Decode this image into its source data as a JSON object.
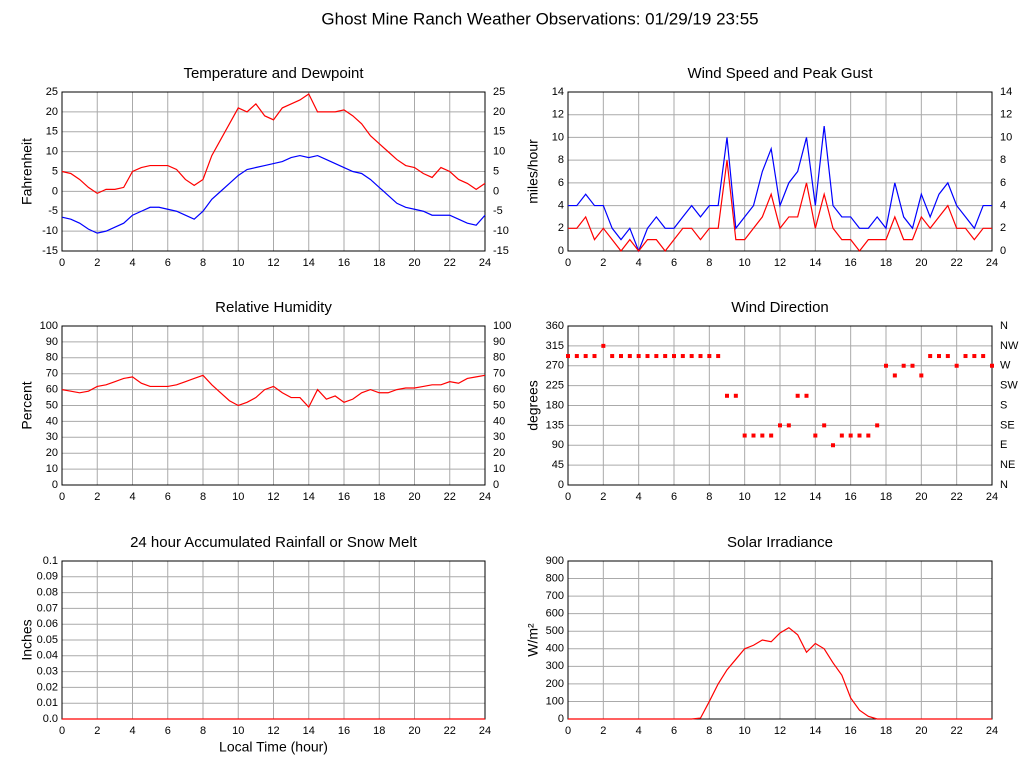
{
  "title": "Ghost Mine Ranch Weather Observations: 01/29/19 23:55",
  "chart_data": [
    {
      "type": "line",
      "title": "Temperature and Dewpoint",
      "ylabel": "Fahrenheit",
      "xlim": [
        0,
        24
      ],
      "xticks": [
        0,
        2,
        4,
        6,
        8,
        10,
        12,
        14,
        16,
        18,
        20,
        22,
        24
      ],
      "ylim": [
        -15,
        25
      ],
      "yticks": [
        -15,
        -10,
        -5,
        0,
        5,
        10,
        15,
        20,
        25
      ],
      "y2lim": [
        -15,
        25
      ],
      "y2ticks": [
        -15,
        -10,
        -5,
        0,
        5,
        10,
        15,
        20,
        25
      ],
      "grid": true,
      "x": [
        0,
        0.5,
        1,
        1.5,
        2,
        2.5,
        3,
        3.5,
        4,
        4.5,
        5,
        5.5,
        6,
        6.5,
        7,
        7.5,
        8,
        8.5,
        9,
        9.5,
        10,
        10.5,
        11,
        11.5,
        12,
        12.5,
        13,
        13.5,
        14,
        14.5,
        15,
        15.5,
        16,
        16.5,
        17,
        17.5,
        18,
        18.5,
        19,
        19.5,
        20,
        20.5,
        21,
        21.5,
        22,
        22.5,
        23,
        23.5,
        24
      ],
      "series": [
        {
          "color": "#ff0000",
          "values": [
            5,
            4.5,
            3,
            1,
            -0.5,
            0.5,
            0.5,
            1,
            5,
            6,
            6.5,
            6.5,
            6.5,
            5.5,
            3,
            1.5,
            3,
            9,
            13,
            17,
            21,
            20,
            22,
            19,
            18,
            21,
            22,
            23,
            24.5,
            20,
            20,
            20,
            20.5,
            19,
            17,
            14,
            12,
            10,
            8,
            6.5,
            6,
            4.5,
            3.5,
            6,
            5,
            3,
            2,
            0.5,
            2
          ]
        },
        {
          "color": "#0000ff",
          "values": [
            -6.5,
            -7,
            -8,
            -9.5,
            -10.5,
            -10,
            -9,
            -8,
            -6,
            -5,
            -4,
            -4,
            -4.5,
            -5,
            -6,
            -7,
            -5,
            -2,
            0,
            2,
            4,
            5.5,
            6,
            6.5,
            7,
            7.5,
            8.5,
            9,
            8.5,
            9,
            8,
            7,
            6,
            5,
            4.5,
            3,
            1,
            -1,
            -3,
            -4,
            -4.5,
            -5,
            -6,
            -6,
            -6,
            -7,
            -8,
            -8.5,
            -6
          ]
        }
      ]
    },
    {
      "type": "line",
      "title": "Wind Speed and Peak Gust",
      "ylabel": "miles/hour",
      "xlim": [
        0,
        24
      ],
      "xticks": [
        0,
        2,
        4,
        6,
        8,
        10,
        12,
        14,
        16,
        18,
        20,
        22,
        24
      ],
      "ylim": [
        0,
        14
      ],
      "yticks": [
        0,
        2,
        4,
        6,
        8,
        10,
        12,
        14
      ],
      "y2lim": [
        0,
        14
      ],
      "y2ticks": [
        0,
        2,
        4,
        6,
        8,
        10,
        12,
        14
      ],
      "grid": true,
      "x": [
        0,
        0.5,
        1,
        1.5,
        2,
        2.5,
        3,
        3.5,
        4,
        4.5,
        5,
        5.5,
        6,
        6.5,
        7,
        7.5,
        8,
        8.5,
        9,
        9.5,
        10,
        10.5,
        11,
        11.5,
        12,
        12.5,
        13,
        13.5,
        14,
        14.5,
        15,
        15.5,
        16,
        16.5,
        17,
        17.5,
        18,
        18.5,
        19,
        19.5,
        20,
        20.5,
        21,
        21.5,
        22,
        22.5,
        23,
        23.5,
        24
      ],
      "series": [
        {
          "color": "#0000ff",
          "values": [
            4,
            4,
            5,
            4,
            4,
            2,
            1,
            2,
            0,
            2,
            3,
            2,
            2,
            3,
            4,
            3,
            4,
            4,
            10,
            2,
            3,
            4,
            7,
            9,
            4,
            6,
            7,
            10,
            4,
            11,
            4,
            3,
            3,
            2,
            2,
            3,
            2,
            6,
            3,
            2,
            5,
            3,
            5,
            6,
            4,
            3,
            2,
            4,
            4
          ]
        },
        {
          "color": "#ff0000",
          "values": [
            2,
            2,
            3,
            1,
            2,
            1,
            0,
            1,
            0,
            1,
            1,
            0,
            1,
            2,
            2,
            1,
            2,
            2,
            8,
            1,
            1,
            2,
            3,
            5,
            2,
            3,
            3,
            6,
            2,
            5,
            2,
            1,
            1,
            0,
            1,
            1,
            1,
            3,
            1,
            1,
            3,
            2,
            3,
            4,
            2,
            2,
            1,
            2,
            2
          ]
        }
      ]
    },
    {
      "type": "line",
      "title": "Relative Humidity",
      "ylabel": "Percent",
      "xlim": [
        0,
        24
      ],
      "xticks": [
        0,
        2,
        4,
        6,
        8,
        10,
        12,
        14,
        16,
        18,
        20,
        22,
        24
      ],
      "ylim": [
        0,
        100
      ],
      "yticks": [
        0,
        10,
        20,
        30,
        40,
        50,
        60,
        70,
        80,
        90,
        100
      ],
      "y2lim": [
        0,
        100
      ],
      "y2ticks": [
        0,
        10,
        20,
        30,
        40,
        50,
        60,
        70,
        80,
        90,
        100
      ],
      "grid": true,
      "x": [
        0,
        0.5,
        1,
        1.5,
        2,
        2.5,
        3,
        3.5,
        4,
        4.5,
        5,
        5.5,
        6,
        6.5,
        7,
        7.5,
        8,
        8.5,
        9,
        9.5,
        10,
        10.5,
        11,
        11.5,
        12,
        12.5,
        13,
        13.5,
        14,
        14.5,
        15,
        15.5,
        16,
        16.5,
        17,
        17.5,
        18,
        18.5,
        19,
        19.5,
        20,
        20.5,
        21,
        21.5,
        22,
        22.5,
        23,
        23.5,
        24
      ],
      "series": [
        {
          "color": "#ff0000",
          "values": [
            60,
            59,
            58,
            59,
            62,
            63,
            65,
            67,
            68,
            64,
            62,
            62,
            62,
            63,
            65,
            67,
            69,
            63,
            58,
            53,
            50,
            52,
            55,
            60,
            62,
            58,
            55,
            55,
            49,
            60,
            54,
            56,
            52,
            54,
            58,
            60,
            58,
            58,
            60,
            61,
            61,
            62,
            63,
            63,
            65,
            64,
            67,
            68,
            69
          ]
        }
      ]
    },
    {
      "type": "scatter",
      "title": "Wind Direction",
      "ylabel": "degrees",
      "xlim": [
        0,
        24
      ],
      "xticks": [
        0,
        2,
        4,
        6,
        8,
        10,
        12,
        14,
        16,
        18,
        20,
        22,
        24
      ],
      "ylim": [
        0,
        360
      ],
      "yticks": [
        0,
        45,
        90,
        135,
        180,
        225,
        270,
        315,
        360
      ],
      "y2lim": [
        0,
        360
      ],
      "y2ticks": [
        {
          "value": 0,
          "label": "N"
        },
        {
          "value": 45,
          "label": "NE"
        },
        {
          "value": 90,
          "label": "E"
        },
        {
          "value": 135,
          "label": "SE"
        },
        {
          "value": 180,
          "label": "S"
        },
        {
          "value": 225,
          "label": "SW"
        },
        {
          "value": 270,
          "label": "W"
        },
        {
          "value": 315,
          "label": "NW"
        },
        {
          "value": 360,
          "label": "N"
        }
      ],
      "grid": true,
      "x": [
        0,
        0.5,
        1,
        1.5,
        2,
        2.5,
        3,
        3.5,
        4,
        4.5,
        5,
        5.5,
        6,
        6.5,
        7,
        7.5,
        8,
        8.5,
        9,
        9.5,
        10,
        10.5,
        11,
        11.5,
        12,
        12.5,
        13,
        13.5,
        14,
        14.5,
        15,
        15.5,
        16,
        16.5,
        17,
        17.5,
        18,
        18.5,
        19,
        19.5,
        20,
        20.5,
        21,
        21.5,
        22,
        22.5,
        23,
        23.5,
        24
      ],
      "series": [
        {
          "color": "#ff0000",
          "values": [
            292,
            292,
            292,
            292,
            315,
            292,
            292,
            292,
            292,
            292,
            292,
            292,
            292,
            292,
            292,
            292,
            292,
            292,
            202,
            202,
            112,
            112,
            112,
            112,
            135,
            135,
            202,
            202,
            112,
            135,
            90,
            112,
            112,
            112,
            112,
            135,
            270,
            248,
            270,
            270,
            248,
            292,
            292,
            292,
            270,
            292,
            292,
            292,
            270
          ]
        }
      ]
    },
    {
      "type": "line",
      "title": "24 hour Accumulated Rainfall or Snow Melt",
      "ylabel": "Inches",
      "xlabel": "Local Time (hour)",
      "xlim": [
        0,
        24
      ],
      "xticks": [
        0,
        2,
        4,
        6,
        8,
        10,
        12,
        14,
        16,
        18,
        20,
        22,
        24
      ],
      "ylim": [
        0,
        0.1
      ],
      "yticks": [
        {
          "value": 0,
          "label": "0.0"
        },
        0.01,
        0.02,
        0.03,
        0.04,
        0.05,
        0.06,
        0.07,
        0.08,
        0.09,
        0.1
      ],
      "grid": true,
      "x": [
        0,
        24
      ],
      "series": [
        {
          "color": "#ff0000",
          "values": [
            0,
            0
          ]
        }
      ]
    },
    {
      "type": "line",
      "title": "Solar Irradiance",
      "ylabel": "W/m²",
      "xlim": [
        0,
        24
      ],
      "xticks": [
        0,
        2,
        4,
        6,
        8,
        10,
        12,
        14,
        16,
        18,
        20,
        22,
        24
      ],
      "ylim": [
        0,
        900
      ],
      "yticks": [
        0,
        100,
        200,
        300,
        400,
        500,
        600,
        700,
        800,
        900
      ],
      "grid": true,
      "x": [
        0,
        0.5,
        1,
        1.5,
        2,
        2.5,
        3,
        3.5,
        4,
        4.5,
        5,
        5.5,
        6,
        6.5,
        7,
        7.5,
        8,
        8.5,
        9,
        9.5,
        10,
        10.5,
        11,
        11.5,
        12,
        12.5,
        13,
        13.5,
        14,
        14.5,
        15,
        15.5,
        16,
        16.5,
        17,
        17.5,
        18,
        18.5,
        19,
        19.5,
        20,
        20.5,
        21,
        21.5,
        22,
        22.5,
        23,
        23.5,
        24
      ],
      "series": [
        {
          "color": "#ff0000",
          "values": [
            0,
            0,
            0,
            0,
            0,
            0,
            0,
            0,
            0,
            0,
            0,
            0,
            0,
            0,
            0,
            5,
            100,
            200,
            280,
            340,
            400,
            420,
            450,
            440,
            490,
            520,
            480,
            380,
            430,
            400,
            320,
            250,
            120,
            50,
            15,
            0,
            0,
            0,
            0,
            0,
            0,
            0,
            0,
            0,
            0,
            0,
            0,
            0,
            0
          ]
        }
      ]
    }
  ]
}
